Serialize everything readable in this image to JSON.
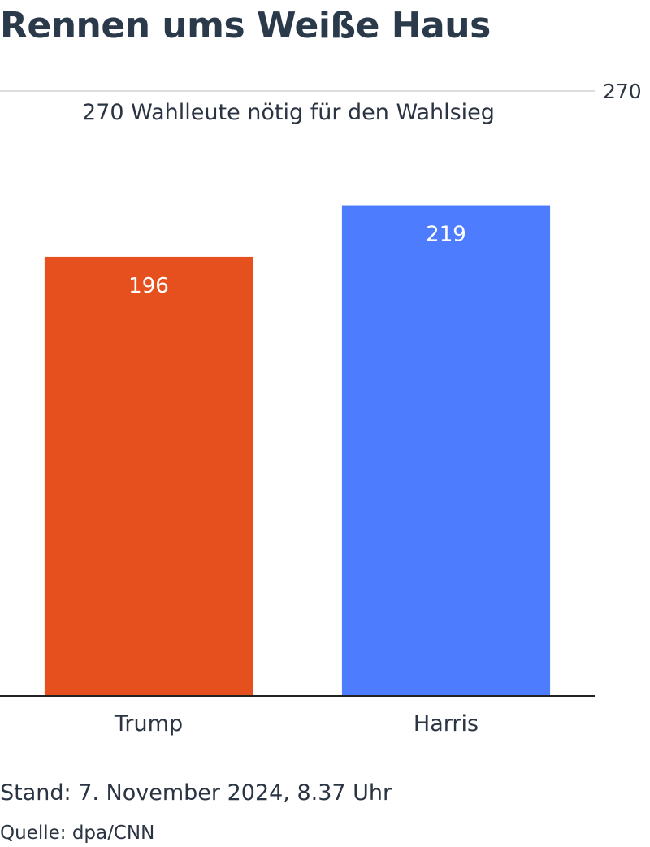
{
  "header": {
    "title": "Rennen ums Weiße Haus"
  },
  "chart_data": {
    "type": "bar",
    "title": "Rennen ums Weiße Haus",
    "categories": [
      "Trump",
      "Harris"
    ],
    "values": [
      196,
      219
    ],
    "colors": [
      "#e5501e",
      "#4d7cfe"
    ],
    "ylim": [
      0,
      270
    ],
    "grid": false,
    "threshold": {
      "value": 270,
      "value_label": "270",
      "label": "270 Wahlleute nötig für den Wahlsieg"
    },
    "xlabel": "",
    "ylabel": ""
  },
  "footer": {
    "date": "Stand: 7. November 2024, 8.37 Uhr",
    "source": "Quelle: dpa/CNN"
  }
}
